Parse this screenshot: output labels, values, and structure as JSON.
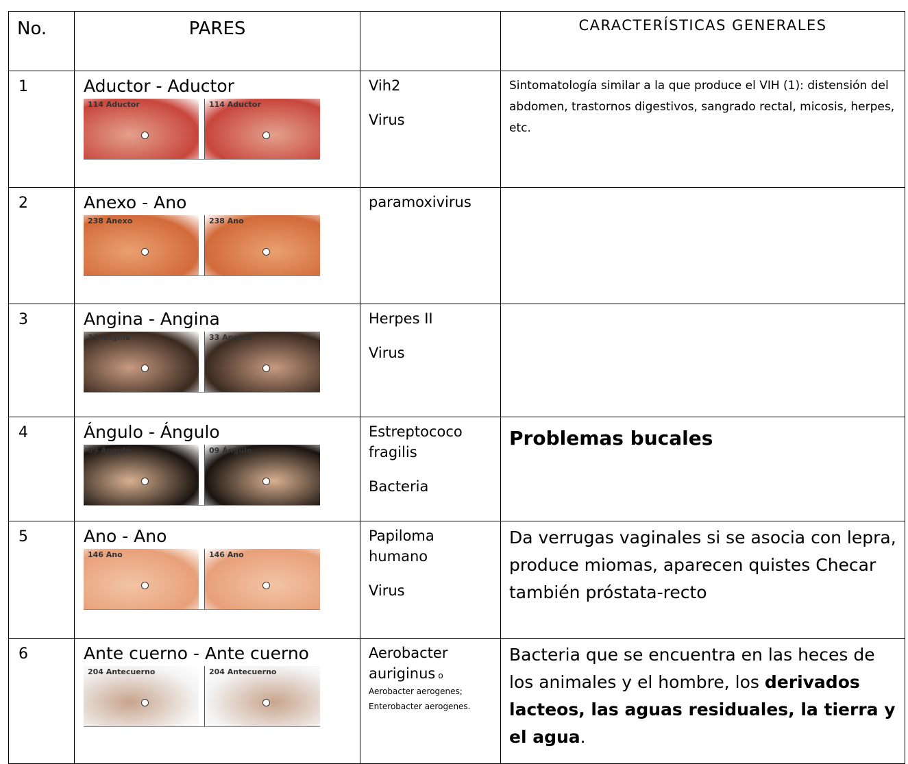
{
  "table": {
    "header": {
      "no": "No.",
      "pares": "PARES",
      "caracteristicas": "CARACTERÍSTICAS GENERALES"
    },
    "rows": [
      {
        "no": "1",
        "pares": "Aductor - Aductor",
        "images": [
          "114 Aductor",
          "114 Aductor"
        ],
        "agent": [
          {
            "text": "Vih2"
          },
          {
            "text": "Virus"
          }
        ],
        "style": "compact",
        "description": [
          {
            "text": "Sintomatología similar a la que produce el VIH (1): distensión del abdomen, trastornos digestivos, sangrado rectal, micosis, herpes, etc."
          }
        ]
      },
      {
        "no": "2",
        "pares": "Anexo - Ano",
        "images": [
          "238 Anexo",
          "238 Ano"
        ],
        "agent": [
          {
            "text": "paramoxivirus"
          }
        ]
      },
      {
        "no": "3",
        "pares": "Angina - Angina",
        "images": [
          "33 Angina",
          "33 Angina"
        ],
        "agent": [
          {
            "text": "Herpes II"
          },
          {
            "text": "Virus"
          }
        ]
      },
      {
        "no": "4",
        "pares": "Ángulo - Ángulo",
        "images": [
          "09 Ángulo",
          "09 Ángulo"
        ],
        "agent": [
          {
            "text": "Estreptococo fragilis"
          },
          {
            "text": "Bacteria"
          }
        ],
        "style": "heading",
        "description": [
          {
            "text": "Problemas bucales",
            "bold": true
          }
        ]
      },
      {
        "no": "5",
        "pares": "Ano - Ano",
        "images": [
          "146 Ano",
          "146 Ano"
        ],
        "agent": [
          {
            "text": "Papiloma humano"
          },
          {
            "text": "Virus"
          }
        ],
        "style": "large",
        "description": [
          {
            "text": "Da verrugas vaginales si se asocia con lepra, produce miomas, aparecen quistes Checar también próstata-recto"
          }
        ]
      },
      {
        "no": "6",
        "pares": "Ante cuerno - Ante cuerno",
        "images": [
          "204 Antecuerno",
          "204 Antecuerno"
        ],
        "agent": [
          {
            "text": "Aerobacter auriginus"
          },
          {
            "text": "o",
            "small": true
          },
          {
            "text": "Aerobacter aerogenes;",
            "small": true
          },
          {
            "text": "Enterobacter aerogenes.",
            "small": true
          }
        ],
        "style": "large",
        "description": [
          {
            "text": "Bacteria que se encuentra en las heces de los animales y el hombre, los "
          },
          {
            "text": "derivados lacteos, las aguas residuales, la tierra y el agua",
            "bold": true
          },
          {
            "text": "."
          }
        ]
      }
    ]
  }
}
